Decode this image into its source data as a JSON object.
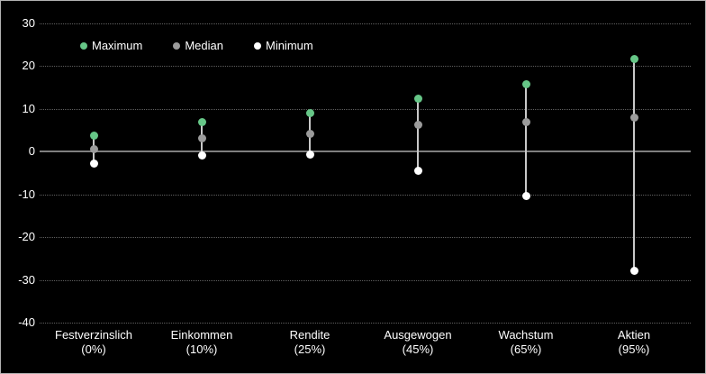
{
  "chart_data": {
    "type": "scatter",
    "subtype": "vertical-range-dot-plot",
    "categories": [
      {
        "name": "Festverzinslich",
        "allocation": "(0%)"
      },
      {
        "name": "Einkommen",
        "allocation": "(10%)"
      },
      {
        "name": "Rendite",
        "allocation": "(25%)"
      },
      {
        "name": "Ausgewogen",
        "allocation": "(45%)"
      },
      {
        "name": "Wachstum",
        "allocation": "(65%)"
      },
      {
        "name": "Aktien",
        "allocation": "(95%)"
      }
    ],
    "series": [
      {
        "name": "Maximum",
        "color": "#66c687",
        "values": [
          3.8,
          6.9,
          9.1,
          12.3,
          15.8,
          21.6
        ]
      },
      {
        "name": "Median",
        "color": "#9b9b9b",
        "values": [
          0.6,
          3.1,
          4.2,
          6.2,
          7.0,
          8.0
        ]
      },
      {
        "name": "Minimum",
        "color": "#ffffff",
        "values": [
          -2.8,
          -0.9,
          -0.7,
          -4.5,
          -10.4,
          -27.8
        ]
      }
    ],
    "yticks": [
      30,
      20,
      10,
      0,
      -10,
      -20,
      -30,
      -40
    ],
    "ylim": [
      -40,
      30
    ],
    "grid": "horizontal-dotted",
    "legend_position": "top-left-inside",
    "colors": {
      "background": "#000000",
      "border": "#b3b3b3",
      "gridline": "#606060",
      "zero_line": "#7f7f7f",
      "range_line": "#c8c8c8",
      "tick_label": "#ffffff"
    }
  }
}
